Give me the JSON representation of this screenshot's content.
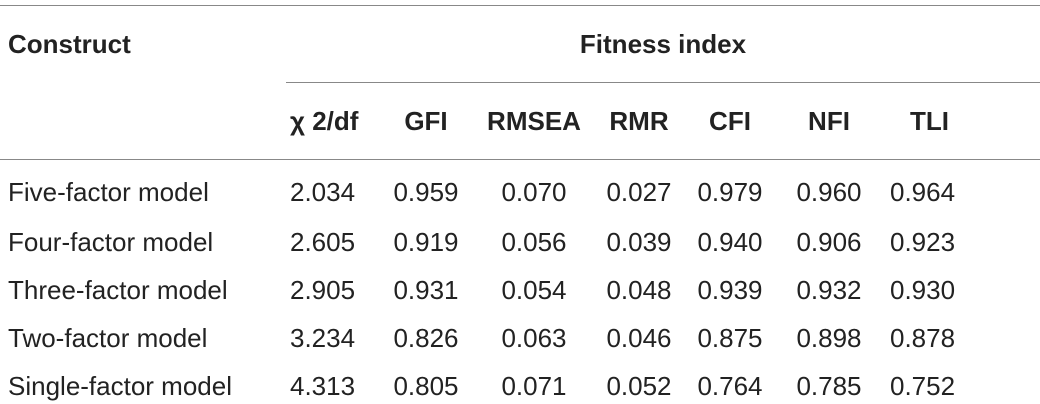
{
  "table": {
    "construct_header": "Construct",
    "group_header": "Fitness index",
    "columns": [
      "χ 2/df",
      "GFI",
      "RMSEA",
      "RMR",
      "CFI",
      "NFI",
      "TLI"
    ],
    "rows": [
      {
        "label": "Five-factor model",
        "values": [
          "2.034",
          "0.959",
          "0.070",
          "0.027",
          "0.979",
          "0.960",
          "0.964"
        ]
      },
      {
        "label": "Four-factor model",
        "values": [
          "2.605",
          "0.919",
          "0.056",
          "0.039",
          "0.940",
          "0.906",
          "0.923"
        ]
      },
      {
        "label": "Three-factor model",
        "values": [
          "2.905",
          "0.931",
          "0.054",
          "0.048",
          "0.939",
          "0.932",
          "0.930"
        ]
      },
      {
        "label": "Two-factor model",
        "values": [
          "3.234",
          "0.826",
          "0.063",
          "0.046",
          "0.875",
          "0.898",
          "0.878"
        ]
      },
      {
        "label": "Single-factor model",
        "values": [
          "4.313",
          "0.805",
          "0.071",
          "0.052",
          "0.764",
          "0.785",
          "0.752"
        ]
      }
    ]
  }
}
